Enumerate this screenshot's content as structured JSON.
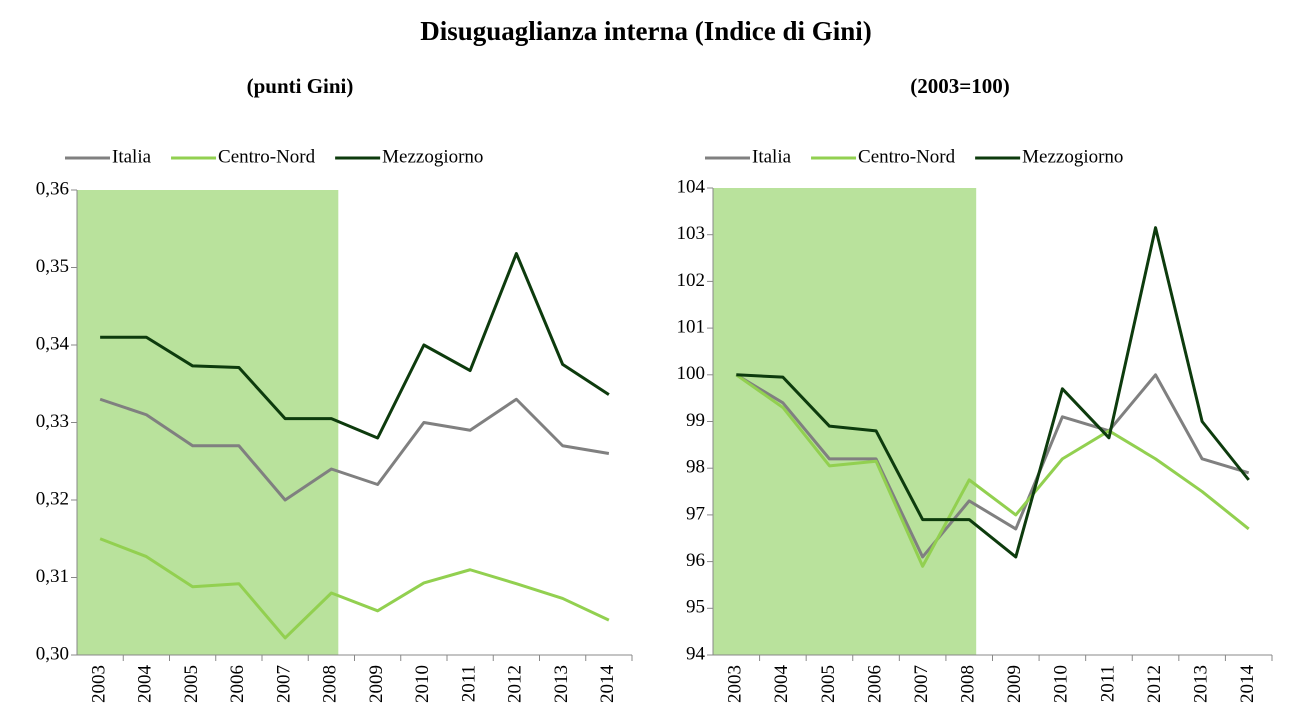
{
  "title": "Disuguaglianza interna (Indice di Gini)",
  "chart_data": [
    {
      "type": "line",
      "subtitle": "(punti Gini)",
      "categories": [
        "2003",
        "2004",
        "2005",
        "2006",
        "2007",
        "2008",
        "2009",
        "2010",
        "2011",
        "2012",
        "2013",
        "2014"
      ],
      "series": [
        {
          "name": "Italia",
          "color": "#808080",
          "values": [
            0.333,
            0.331,
            0.327,
            0.327,
            0.32,
            0.324,
            0.322,
            0.33,
            0.329,
            0.333,
            0.327,
            0.326
          ]
        },
        {
          "name": "Centro-Nord",
          "color": "#92d050",
          "values": [
            0.315,
            0.3127,
            0.3088,
            0.3092,
            0.3022,
            0.308,
            0.3057,
            0.3093,
            0.311,
            0.3092,
            0.3073,
            0.3045
          ]
        },
        {
          "name": "Mezzogiorno",
          "color": "#0d3b0d",
          "values": [
            0.341,
            0.341,
            0.3373,
            0.3371,
            0.3305,
            0.3305,
            0.328,
            0.34,
            0.3367,
            0.3518,
            0.3375,
            0.3336
          ]
        }
      ],
      "ylim": [
        0.3,
        0.36
      ],
      "yticks": [
        {
          "value": 0.3,
          "label": "0,30"
        },
        {
          "value": 0.31,
          "label": "0,31"
        },
        {
          "value": 0.32,
          "label": "0,32"
        },
        {
          "value": 0.33,
          "label": "0,33"
        },
        {
          "value": 0.34,
          "label": "0,34"
        },
        {
          "value": 0.35,
          "label": "0,35"
        },
        {
          "value": 0.36,
          "label": "0,36"
        }
      ],
      "legend": "top-left",
      "highlight": {
        "from": "2003",
        "to": "2008",
        "color": "#b9e29c"
      }
    },
    {
      "type": "line",
      "subtitle": "(2003=100)",
      "categories": [
        "2003",
        "2004",
        "2005",
        "2006",
        "2007",
        "2008",
        "2009",
        "2010",
        "2011",
        "2012",
        "2013",
        "2014"
      ],
      "series": [
        {
          "name": "Italia",
          "color": "#808080",
          "values": [
            100,
            99.4,
            98.2,
            98.2,
            96.1,
            97.3,
            96.7,
            99.1,
            98.8,
            100,
            98.2,
            97.9
          ]
        },
        {
          "name": "Centro-Nord",
          "color": "#92d050",
          "values": [
            100,
            99.3,
            98.05,
            98.15,
            95.9,
            97.75,
            97.0,
            98.2,
            98.8,
            98.2,
            97.5,
            96.7
          ]
        },
        {
          "name": "Mezzogiorno",
          "color": "#0d3b0d",
          "values": [
            100,
            99.95,
            98.9,
            98.8,
            96.9,
            96.9,
            96.1,
            99.7,
            98.65,
            103.15,
            99.0,
            97.75
          ]
        }
      ],
      "ylim": [
        94,
        104
      ],
      "yticks": [
        94,
        95,
        96,
        97,
        98,
        99,
        100,
        101,
        102,
        103,
        104
      ],
      "legend": "top-left",
      "highlight": {
        "from": "2003",
        "to": "2008",
        "color": "#b9e29c"
      }
    }
  ]
}
